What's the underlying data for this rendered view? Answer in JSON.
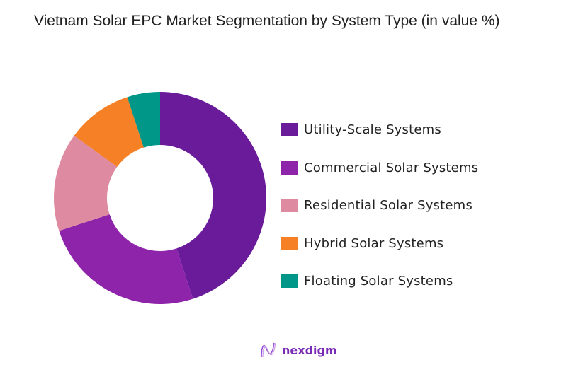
{
  "title": "Vietnam Solar EPC  Market Segmentation by System Type (in value %)",
  "brand": {
    "name": "nexdigm",
    "logo_icon": "nexdigm-wave-logo",
    "color": "#7a2bb5"
  },
  "legend": [
    {
      "label": "Utility-Scale Systems",
      "color": "#6a1b9a"
    },
    {
      "label": "Commercial Solar Systems",
      "color": "#8e24aa"
    },
    {
      "label": "Residential Solar Systems",
      "color": "#de8aa1"
    },
    {
      "label": "Hybrid Solar Systems",
      "color": "#f58025"
    },
    {
      "label": "Floating Solar Systems",
      "color": "#009688"
    }
  ],
  "chart_data": {
    "type": "pie",
    "subtype": "donut",
    "title": "Vietnam Solar EPC  Market Segmentation by System Type (in value %)",
    "categories": [
      "Utility-Scale Systems",
      "Commercial Solar Systems",
      "Residential Solar Systems",
      "Hybrid Solar Systems",
      "Floating Solar Systems"
    ],
    "values": [
      45,
      25,
      15,
      10,
      5
    ],
    "unit": "%",
    "colors": [
      "#6a1b9a",
      "#8e24aa",
      "#de8aa1",
      "#f58025",
      "#009688"
    ],
    "start_angle": "12 o'clock, clockwise",
    "legend_position": "right",
    "data_labels": false
  }
}
